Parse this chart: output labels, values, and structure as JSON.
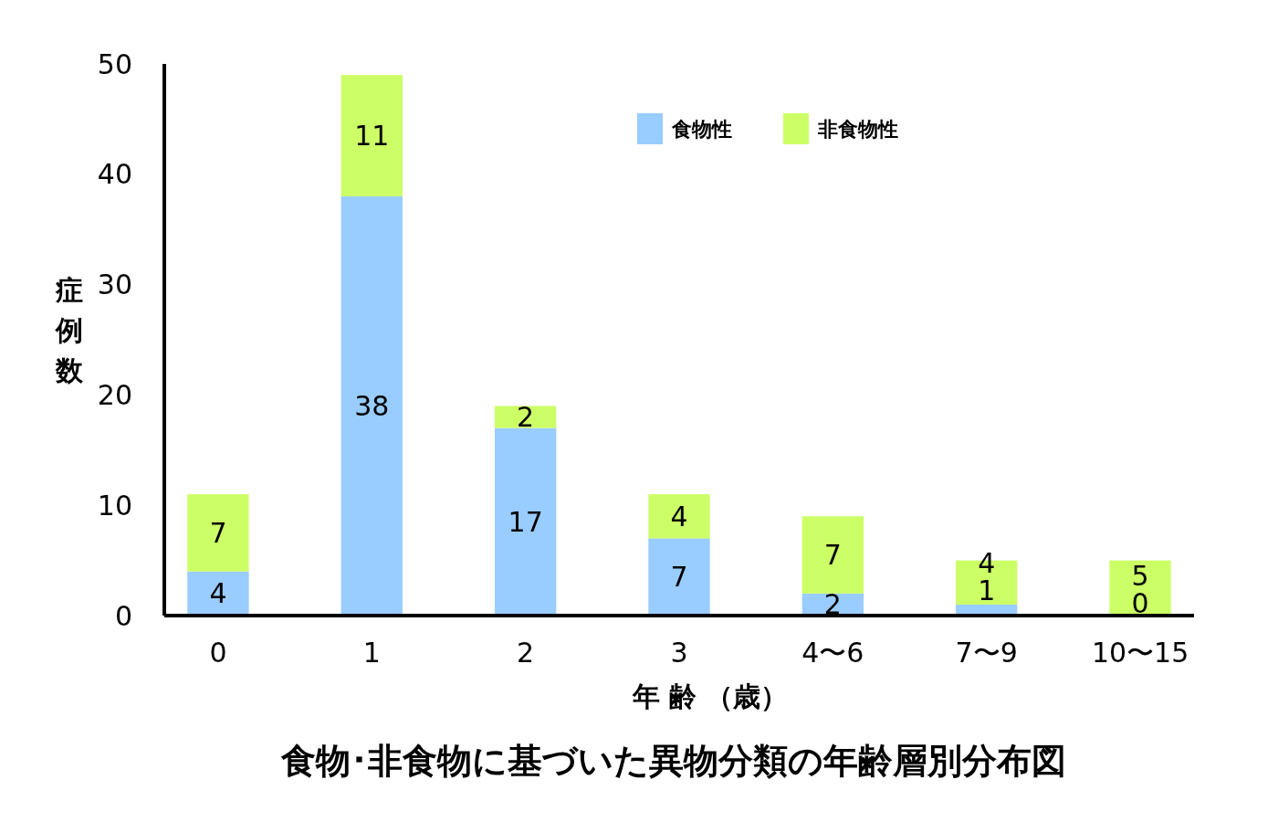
{
  "chart_data": {
    "type": "bar",
    "stacked": true,
    "title": "食物･非食物に基づいた異物分類の年齢層別分布図",
    "xlabel": "年 齢 （歳）",
    "ylabel": "症例数",
    "categories": [
      "0",
      "1",
      "2",
      "3",
      "4〜6",
      "7〜9",
      "10〜15"
    ],
    "series": [
      {
        "name": "食物性",
        "color": "#99ccff",
        "values": [
          4,
          38,
          17,
          7,
          2,
          1,
          0
        ]
      },
      {
        "name": "非食物性",
        "color": "#ccff66",
        "values": [
          7,
          11,
          2,
          4,
          7,
          4,
          5
        ]
      }
    ],
    "ylim": [
      0,
      50
    ],
    "yticks": [
      0,
      10,
      20,
      30,
      40,
      50
    ],
    "grid": false,
    "legend": "top right",
    "data_labels": true
  }
}
